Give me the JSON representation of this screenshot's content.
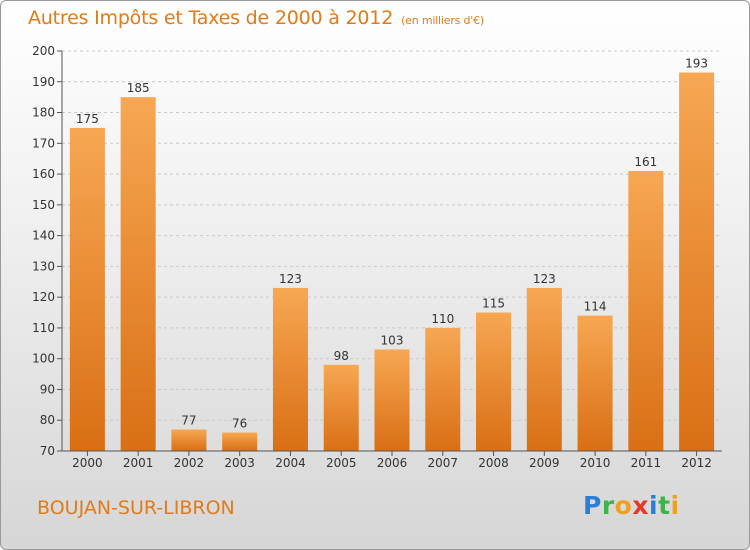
{
  "header": {
    "title": "Autres Impôts et Taxes de 2000 à 2012",
    "unit": "(en milliers d'€)"
  },
  "footer": {
    "town": "BOUJAN-SUR-LIBRON",
    "logo": {
      "p": "P",
      "r": "r",
      "o": "o",
      "x": "x",
      "i1": "i",
      "t": "t",
      "i2": "i"
    }
  },
  "colors": {
    "bar_top": "#f7a753",
    "bar_bottom": "#d96f14",
    "title": "#e27a18",
    "axis_text": "#333333"
  },
  "chart_data": {
    "type": "bar",
    "title": "Autres Impôts et Taxes de 2000 à 2012",
    "categories": [
      "2000",
      "2001",
      "2002",
      "2003",
      "2004",
      "2005",
      "2006",
      "2007",
      "2008",
      "2009",
      "2010",
      "2011",
      "2012"
    ],
    "values": [
      175,
      185,
      77,
      76,
      123,
      98,
      103,
      110,
      115,
      123,
      114,
      161,
      193
    ],
    "ylim": [
      70,
      200
    ],
    "yticks": [
      70,
      80,
      90,
      100,
      110,
      120,
      130,
      140,
      150,
      160,
      170,
      180,
      190,
      200
    ],
    "grid": true,
    "legend": "none"
  }
}
